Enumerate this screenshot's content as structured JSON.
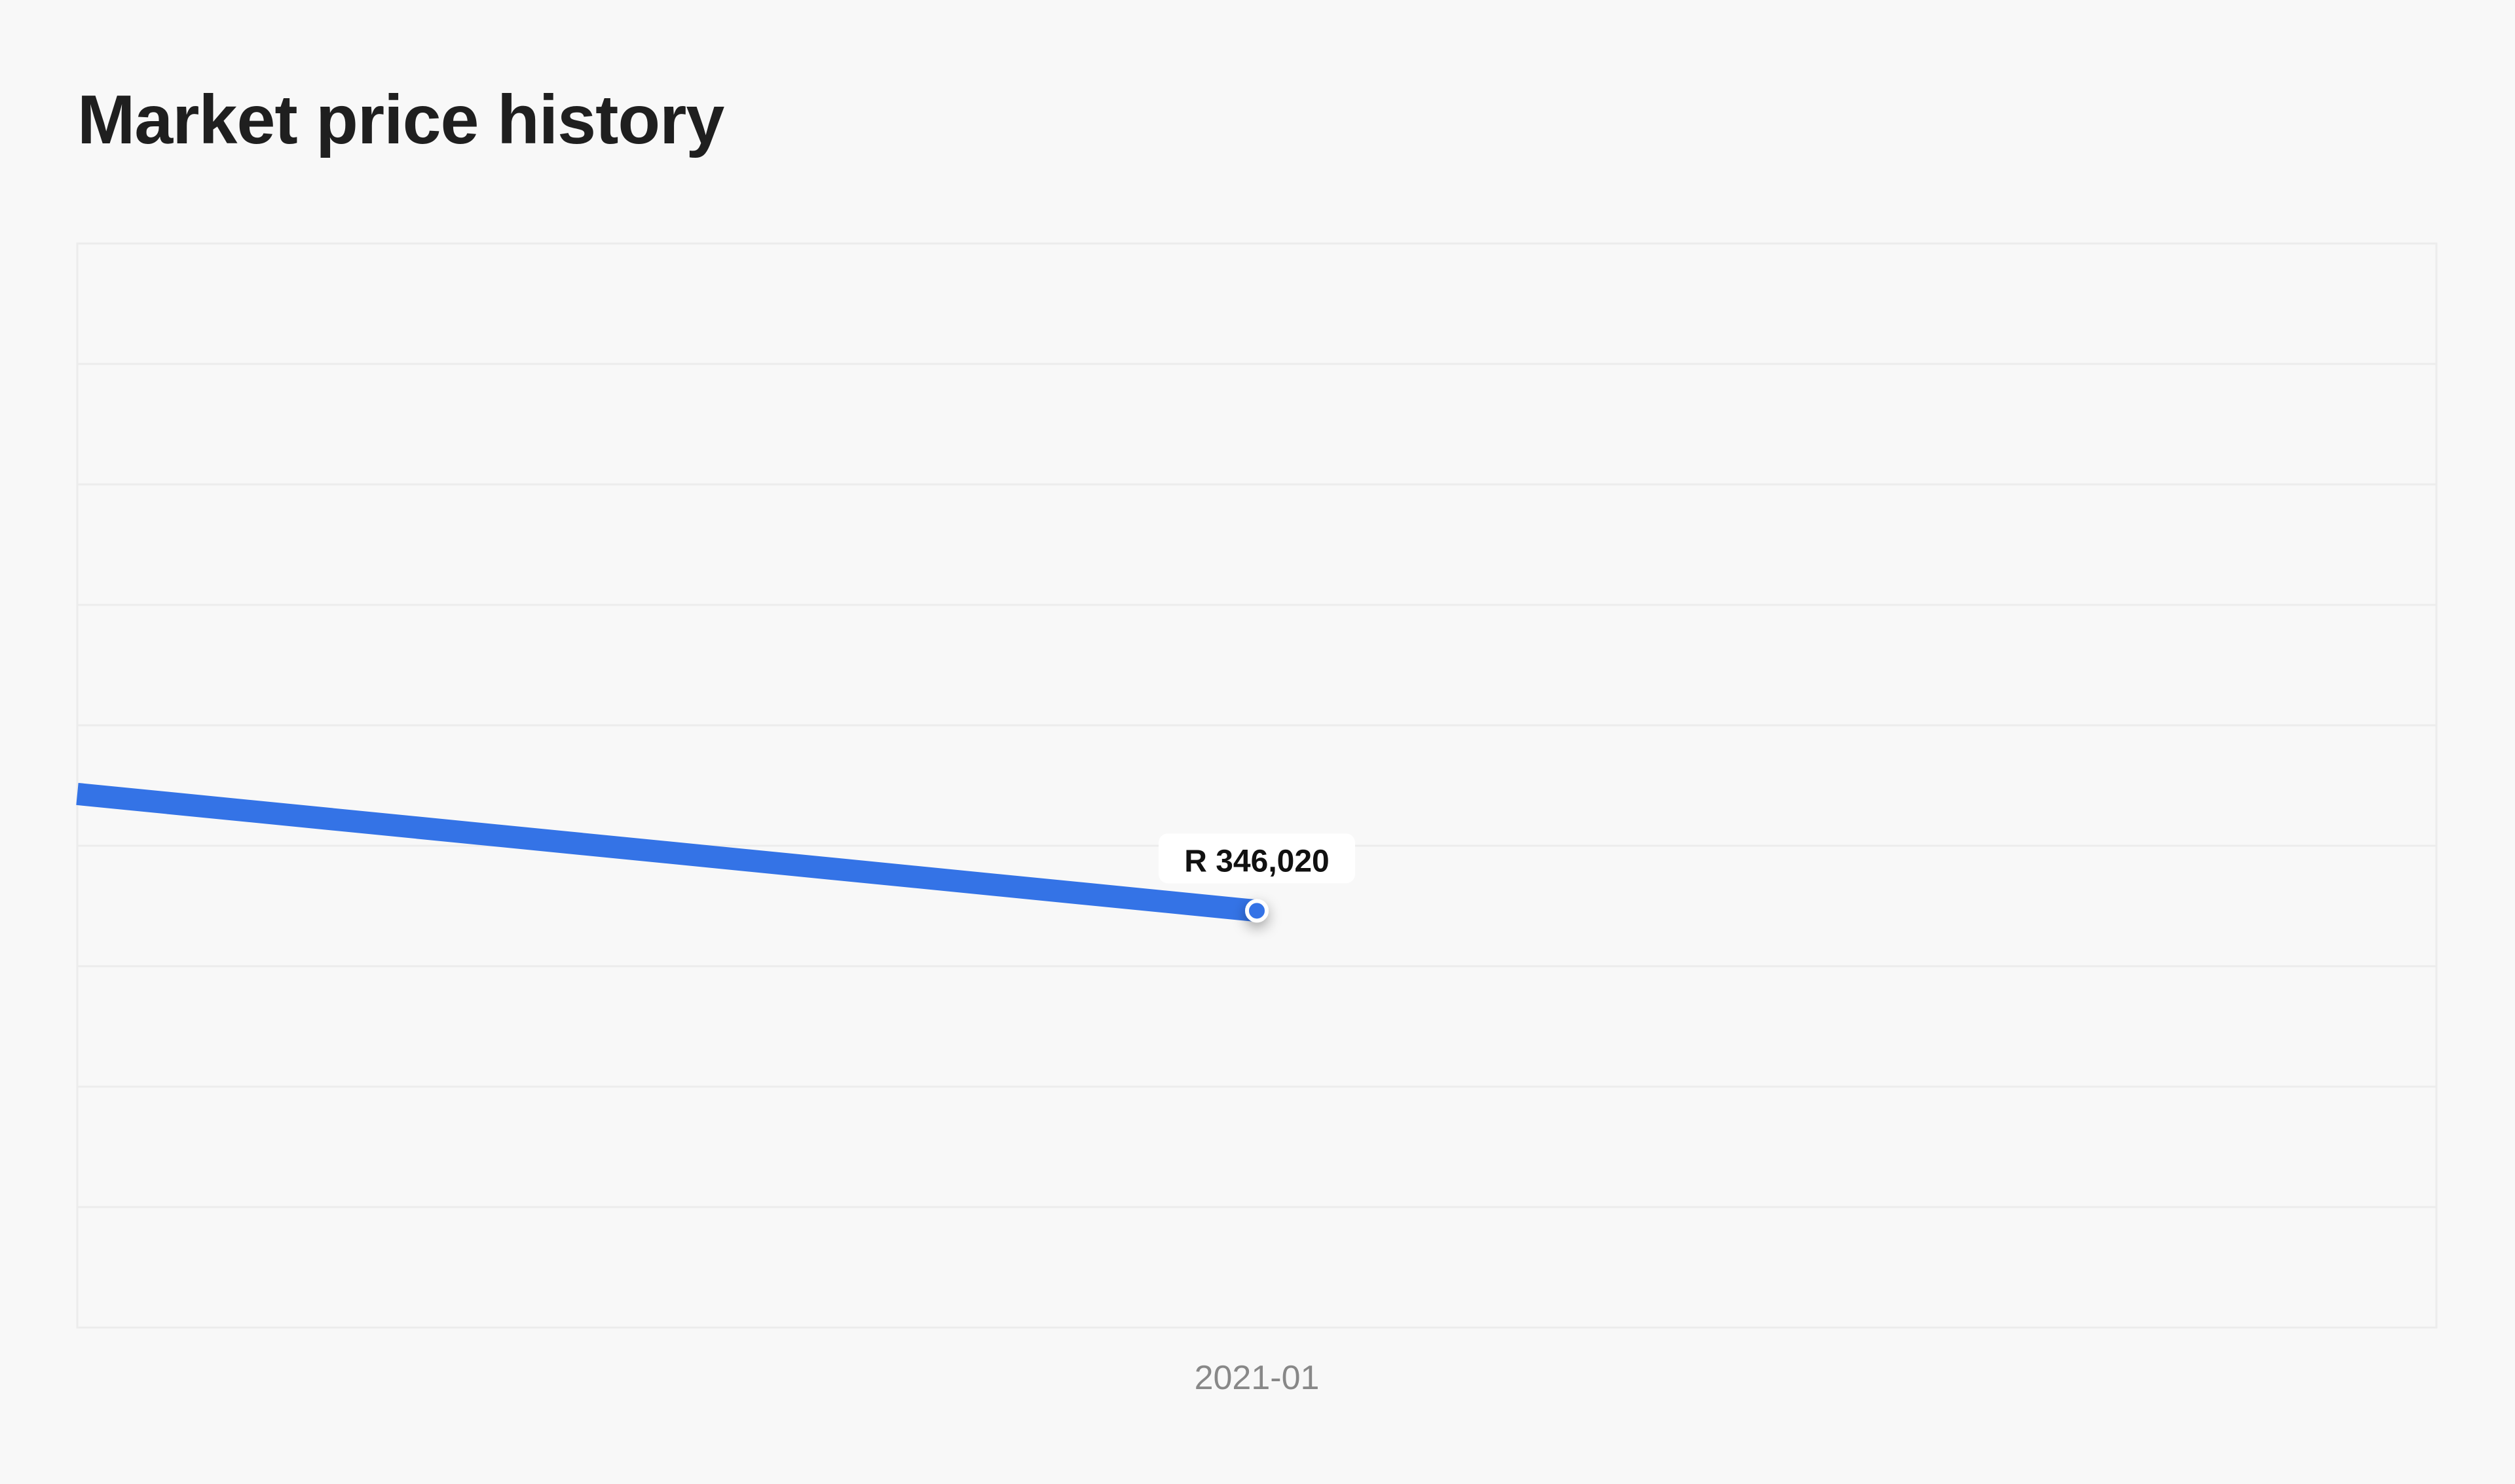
{
  "page": {
    "title": "Market price history"
  },
  "colors": {
    "background": "#f8f8f8",
    "title": "#1f1f1f",
    "grid": "#ececec",
    "line": "#3473e6",
    "point_fill": "#3473e6",
    "point_stroke": "#ffffff",
    "label_bg": "#ffffff",
    "label_text": "#111111",
    "axis_text": "#888888"
  },
  "chart_data": {
    "type": "line",
    "title": "Market price history",
    "xlabel": "",
    "ylabel": "",
    "x_ticks": [
      "2021-01"
    ],
    "x_range": [
      "2020-07",
      "2021-07"
    ],
    "y_range": [
      0,
      900000
    ],
    "grid": true,
    "grid_rows": 9,
    "series": [
      {
        "values": [
          {
            "x": "2020-07",
            "y": 443000
          },
          {
            "x": "2021-01",
            "y": 346020
          }
        ]
      }
    ],
    "data_labels": [
      {
        "x": "2021-01",
        "y": 346020,
        "text": "R 346,020"
      }
    ]
  }
}
